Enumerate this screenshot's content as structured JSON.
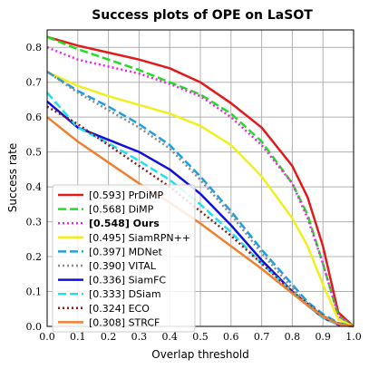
{
  "chart_data": {
    "type": "line",
    "title": "Success plots of OPE on LaSOT",
    "xlabel": "Overlap threshold",
    "ylabel": "Success rate",
    "xlim": [
      0,
      1
    ],
    "ylim": [
      0,
      0.85
    ],
    "xticks": [
      "0.0",
      "0.1",
      "0.2",
      "0.3",
      "0.4",
      "0.5",
      "0.6",
      "0.7",
      "0.8",
      "0.9",
      "1.0"
    ],
    "yticks": [
      "0.0",
      "0.1",
      "0.2",
      "0.3",
      "0.4",
      "0.5",
      "0.6",
      "0.7",
      "0.8"
    ],
    "grid": true,
    "legend_position": "lower-left",
    "x": [
      0.0,
      0.1,
      0.2,
      0.3,
      0.4,
      0.5,
      0.6,
      0.7,
      0.8,
      0.85,
      0.9,
      0.95,
      1.0
    ],
    "series": [
      {
        "name": "[0.593] PrDiMP",
        "color": "#e31a1c",
        "dash": "solid",
        "bold": false,
        "values": [
          0.83,
          0.805,
          0.785,
          0.765,
          0.74,
          0.7,
          0.64,
          0.57,
          0.46,
          0.37,
          0.23,
          0.04,
          0.0
        ]
      },
      {
        "name": "[0.568] DiMP",
        "color": "#22dd22",
        "dash": "dashed",
        "bold": false,
        "values": [
          0.83,
          0.795,
          0.765,
          0.735,
          0.7,
          0.665,
          0.61,
          0.53,
          0.41,
          0.32,
          0.18,
          0.03,
          0.0
        ]
      },
      {
        "name": "[0.548] Ours",
        "color": "#ee22ee",
        "dash": "dotted",
        "bold": true,
        "values": [
          0.8,
          0.765,
          0.745,
          0.725,
          0.695,
          0.66,
          0.6,
          0.52,
          0.41,
          0.31,
          0.18,
          0.03,
          0.0
        ]
      },
      {
        "name": "[0.495] SiamRPN++",
        "color": "#f0f020",
        "dash": "solid",
        "bold": false,
        "values": [
          0.73,
          0.69,
          0.66,
          0.635,
          0.61,
          0.575,
          0.52,
          0.43,
          0.31,
          0.23,
          0.12,
          0.02,
          0.0
        ]
      },
      {
        "name": "[0.397] MDNet",
        "color": "#1f9fdf",
        "dash": "dashed",
        "bold": false,
        "values": [
          0.73,
          0.675,
          0.63,
          0.58,
          0.52,
          0.43,
          0.33,
          0.22,
          0.12,
          0.07,
          0.035,
          0.01,
          0.0
        ]
      },
      {
        "name": "[0.390] VITAL",
        "color": "#8a8a8a",
        "dash": "dotted",
        "bold": false,
        "values": [
          0.73,
          0.67,
          0.62,
          0.57,
          0.51,
          0.42,
          0.32,
          0.21,
          0.11,
          0.065,
          0.03,
          0.008,
          0.0
        ]
      },
      {
        "name": "[0.336] SiamFC",
        "color": "#1010dd",
        "dash": "solid",
        "bold": false,
        "values": [
          0.645,
          0.57,
          0.535,
          0.5,
          0.45,
          0.38,
          0.29,
          0.19,
          0.1,
          0.06,
          0.025,
          0.005,
          0.0
        ]
      },
      {
        "name": "[0.333] DSiam",
        "color": "#20e0f0",
        "dash": "dashed",
        "bold": false,
        "values": [
          0.67,
          0.57,
          0.525,
          0.475,
          0.42,
          0.35,
          0.27,
          0.18,
          0.1,
          0.06,
          0.025,
          0.005,
          0.0
        ]
      },
      {
        "name": "[0.324] ECO",
        "color": "#8b1a1a",
        "dash": "dotted",
        "bold": false,
        "values": [
          0.63,
          0.58,
          0.52,
          0.46,
          0.4,
          0.33,
          0.26,
          0.18,
          0.1,
          0.065,
          0.03,
          0.008,
          0.0
        ]
      },
      {
        "name": "[0.308] STRCF",
        "color": "#f08030",
        "dash": "solid",
        "bold": false,
        "values": [
          0.6,
          0.53,
          0.47,
          0.41,
          0.355,
          0.295,
          0.23,
          0.165,
          0.095,
          0.06,
          0.028,
          0.007,
          0.0
        ]
      }
    ]
  }
}
